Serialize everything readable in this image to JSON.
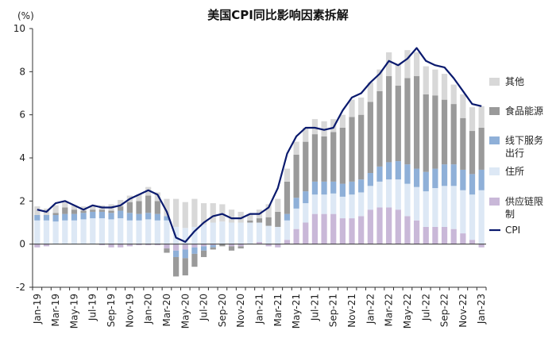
{
  "chart_data": {
    "type": "bar",
    "stacked": true,
    "title": "美国CPI同比影响因素拆解",
    "unit_label": "(%)",
    "ylim": [
      -2,
      10
    ],
    "yticks": [
      -2,
      0,
      2,
      4,
      6,
      8,
      10
    ],
    "neg_tick_color": "#d0021b",
    "x": [
      "Jan-19",
      "Feb-19",
      "Mar-19",
      "Apr-19",
      "May-19",
      "Jun-19",
      "Jul-19",
      "Aug-19",
      "Sep-19",
      "Oct-19",
      "Nov-19",
      "Dec-19",
      "Jan-20",
      "Feb-20",
      "Mar-20",
      "Apr-20",
      "May-20",
      "Jun-20",
      "Jul-20",
      "Aug-20",
      "Sep-20",
      "Oct-20",
      "Nov-20",
      "Dec-20",
      "Jan-21",
      "Feb-21",
      "Mar-21",
      "Apr-21",
      "May-21",
      "Jun-21",
      "Jul-21",
      "Aug-21",
      "Sep-21",
      "Oct-21",
      "Nov-21",
      "Dec-21",
      "Jan-22",
      "Feb-22",
      "Mar-22",
      "Apr-22",
      "May-22",
      "Jun-22",
      "Jul-22",
      "Aug-22",
      "Sep-22",
      "Oct-22",
      "Nov-22",
      "Dec-22",
      "Jan-23"
    ],
    "xtick_labels": [
      "Jan-19",
      "Mar-19",
      "May-19",
      "Jul-19",
      "Sep-19",
      "Nov-19",
      "Jan-20",
      "Mar-20",
      "May-20",
      "Jul-20",
      "Sep-20",
      "Nov-20",
      "Jan-21",
      "Mar-21",
      "May-21",
      "Jul-21",
      "Sep-21",
      "Nov-21",
      "Jan-22",
      "Mar-22",
      "May-22",
      "Jul-22",
      "Sep-22",
      "Nov-22",
      "Jan-23"
    ],
    "legend_position": "right",
    "series": [
      {
        "name": "供应链限制",
        "color": "#c9b8d8",
        "values": [
          -0.15,
          -0.1,
          0,
          0,
          0,
          0,
          0,
          -0.05,
          -0.15,
          -0.15,
          -0.1,
          -0.05,
          -0.05,
          -0.05,
          -0.2,
          -0.3,
          -0.25,
          -0.15,
          -0.1,
          -0.05,
          0,
          -0.1,
          -0.1,
          0,
          0.1,
          -0.1,
          -0.15,
          0.2,
          0.7,
          1.0,
          1.4,
          1.4,
          1.4,
          1.2,
          1.2,
          1.3,
          1.6,
          1.7,
          1.7,
          1.6,
          1.3,
          1.1,
          0.8,
          0.8,
          0.8,
          0.7,
          0.5,
          0.2,
          -0.15
        ]
      },
      {
        "name": "住所",
        "color": "#dde8f5",
        "values": [
          1.1,
          1.1,
          1.05,
          1.1,
          1.1,
          1.15,
          1.2,
          1.2,
          1.15,
          1.2,
          1.1,
          1.1,
          1.15,
          1.1,
          1.1,
          0.8,
          0.75,
          0.8,
          0.9,
          1.0,
          1.05,
          1.0,
          1.0,
          1.0,
          0.9,
          0.85,
          0.8,
          0.9,
          0.95,
          0.9,
          0.9,
          0.9,
          0.95,
          1.0,
          1.1,
          1.1,
          1.1,
          1.2,
          1.3,
          1.4,
          1.5,
          1.55,
          1.65,
          1.8,
          1.9,
          2.0,
          2.0,
          2.1,
          2.5
        ]
      },
      {
        "name": "线下服务出行",
        "color": "#8fb0d8",
        "values": [
          0.25,
          0.25,
          0.3,
          0.3,
          0.3,
          0.3,
          0.3,
          0.3,
          0.3,
          0.35,
          0.35,
          0.3,
          0.3,
          0.3,
          0.2,
          -0.3,
          -0.4,
          -0.3,
          -0.2,
          -0.1,
          0,
          0,
          0,
          0,
          0,
          0,
          0,
          0.3,
          0.5,
          0.55,
          0.6,
          0.6,
          0.55,
          0.6,
          0.6,
          0.6,
          0.6,
          0.7,
          0.8,
          0.85,
          0.9,
          0.85,
          0.9,
          0.9,
          1.0,
          1.0,
          0.95,
          0.95,
          0.95
        ]
      },
      {
        "name": "食品能源",
        "color": "#9a9a9a",
        "values": [
          0,
          0,
          0.1,
          0.3,
          0.2,
          0.1,
          0.1,
          0.1,
          0.1,
          0.2,
          0.5,
          0.6,
          0.8,
          0.6,
          -0.2,
          -0.9,
          -0.8,
          -0.6,
          -0.3,
          -0.1,
          -0.1,
          -0.2,
          -0.1,
          0.1,
          0.2,
          0.4,
          0.7,
          1.5,
          2.0,
          2.3,
          2.2,
          2.1,
          2.3,
          2.6,
          3.0,
          3.0,
          3.3,
          3.5,
          4.0,
          3.5,
          4.0,
          4.3,
          3.6,
          3.4,
          3.0,
          2.8,
          2.4,
          2.0,
          1.95
        ]
      },
      {
        "name": "其他",
        "color": "#d8d8d8",
        "values": [
          0.4,
          0.3,
          0.35,
          0.3,
          0.2,
          0.2,
          0.2,
          0.2,
          0.3,
          0.3,
          0.3,
          0.3,
          0.4,
          0.4,
          0.8,
          1.3,
          1.2,
          1.3,
          1.0,
          0.9,
          0.8,
          0.6,
          0.5,
          0.3,
          0.4,
          0.6,
          0.6,
          0.6,
          0.6,
          0.65,
          0.7,
          0.7,
          0.6,
          0.6,
          0.8,
          0.8,
          0.9,
          1.0,
          1.1,
          1.0,
          1.3,
          1.1,
          1.3,
          1.2,
          1.2,
          0.9,
          1.1,
          1.1,
          1.0
        ]
      }
    ],
    "line": {
      "name": "CPI",
      "color": "#0a1a6e",
      "values": [
        1.6,
        1.5,
        1.9,
        2.0,
        1.8,
        1.6,
        1.8,
        1.7,
        1.7,
        1.8,
        2.1,
        2.3,
        2.5,
        2.3,
        1.5,
        0.3,
        0.1,
        0.6,
        1.0,
        1.3,
        1.4,
        1.2,
        1.2,
        1.4,
        1.4,
        1.7,
        2.6,
        4.2,
        5.0,
        5.4,
        5.4,
        5.3,
        5.4,
        6.2,
        6.8,
        7.0,
        7.5,
        7.9,
        8.5,
        8.3,
        8.6,
        9.1,
        8.5,
        8.3,
        8.2,
        7.7,
        7.1,
        6.5,
        6.4
      ]
    },
    "legend_order": [
      "其他",
      "食品能源",
      "线下服务出行",
      "住所",
      "供应链限制",
      "CPI"
    ],
    "legend_labels": {
      "其他": [
        "其他"
      ],
      "食品能源": [
        "食品能源"
      ],
      "线下服务出行": [
        "线下服务",
        "出行"
      ],
      "住所": [
        "住所"
      ],
      "供应链限制": [
        "供应链限",
        "制"
      ],
      "CPI": [
        "CPI"
      ]
    }
  }
}
